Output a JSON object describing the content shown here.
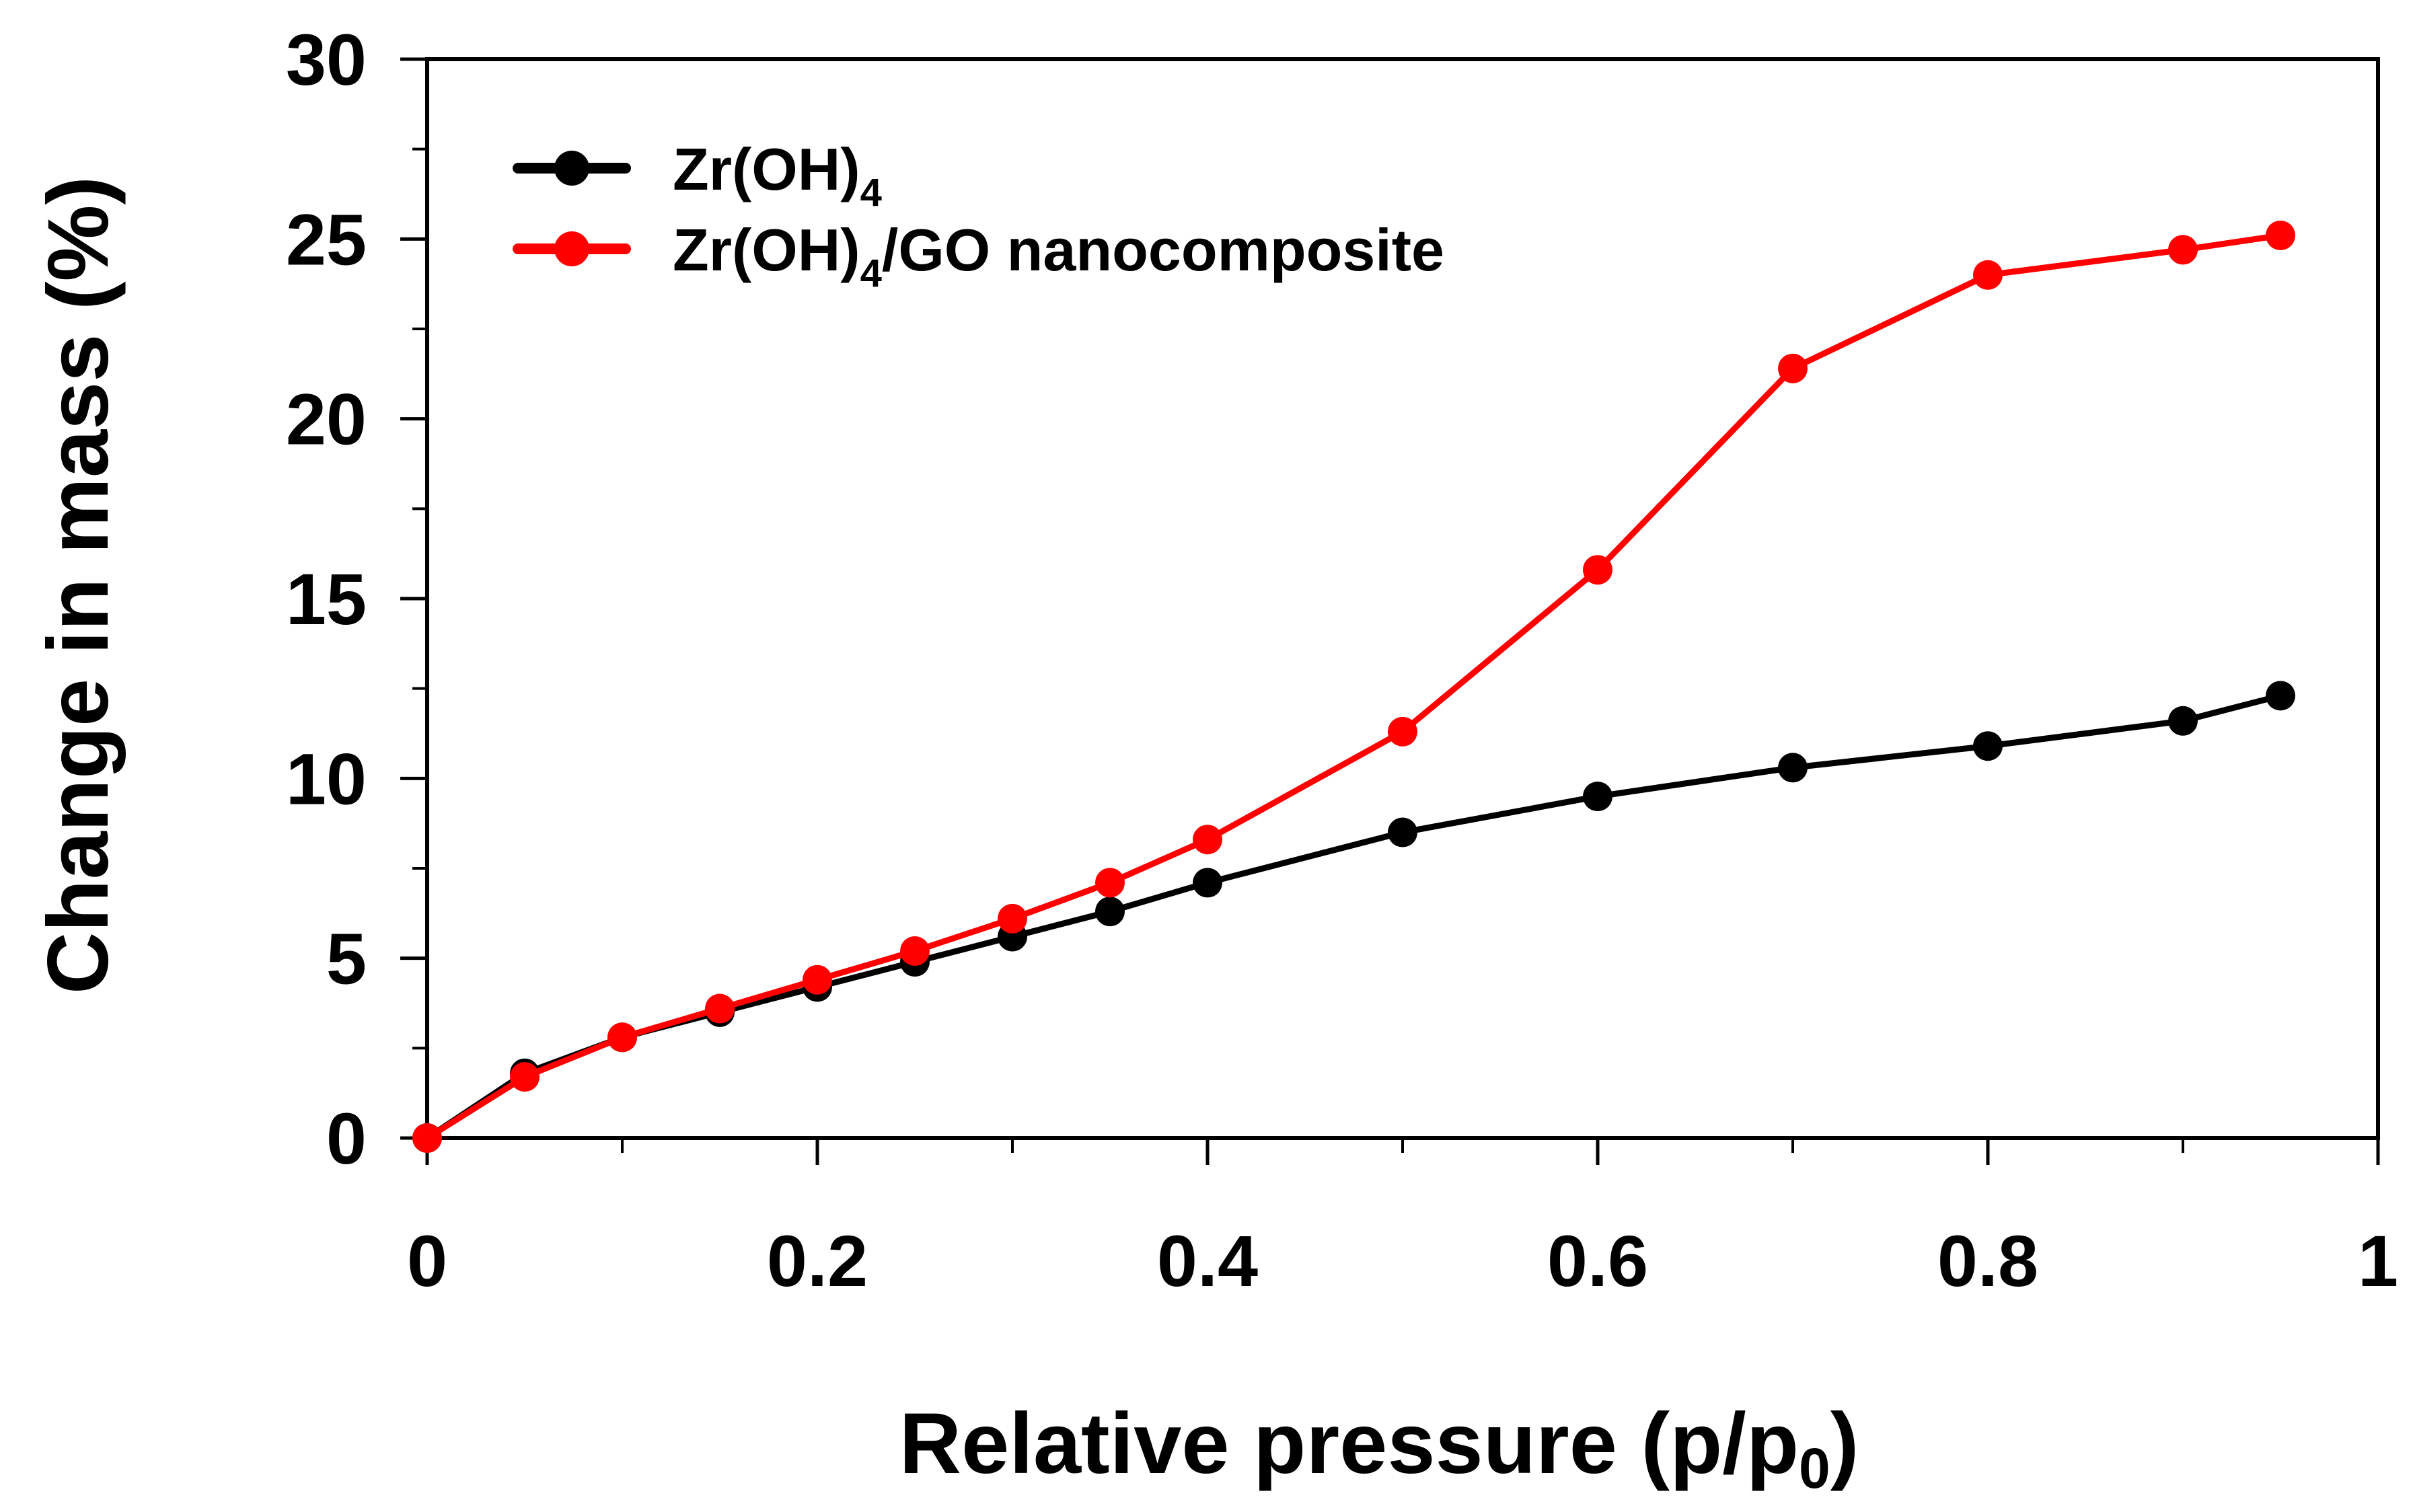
{
  "chart_data": {
    "type": "line",
    "title": "",
    "xlabel": "Relative pressure (p/p0)",
    "xlabel_parts": {
      "base": "Relative pressure (p/p",
      "subscript": "0",
      "suffix": ")"
    },
    "ylabel": "Change in mass (%)",
    "xlim": [
      0,
      1
    ],
    "ylim": [
      0,
      30
    ],
    "x_ticks": [
      0,
      0.2,
      0.4,
      0.6,
      0.8,
      1
    ],
    "x_tick_labels": [
      "0",
      "0.2",
      "0.4",
      "0.6",
      "0.8",
      "1"
    ],
    "x_minor_ticks": [
      0.1,
      0.3,
      0.5,
      0.7,
      0.9
    ],
    "y_ticks": [
      0,
      5,
      10,
      15,
      20,
      25,
      30
    ],
    "y_tick_labels": [
      "0",
      "5",
      "10",
      "15",
      "20",
      "25",
      "30"
    ],
    "y_minor_ticks": [
      2.5,
      7.5,
      12.5,
      17.5,
      22.5,
      27.5
    ],
    "grid": false,
    "legend_position": "top-left",
    "series": [
      {
        "name": "Zr(OH)4",
        "legend": {
          "base": "Zr(OH)",
          "subscript": "4",
          "suffix": ""
        },
        "color": "#000000",
        "x": [
          0,
          0.05,
          0.1,
          0.15,
          0.2,
          0.25,
          0.3,
          0.35,
          0.4,
          0.5,
          0.6,
          0.7,
          0.8,
          0.9,
          0.95
        ],
        "values": [
          0,
          1.8,
          2.8,
          3.5,
          4.2,
          4.9,
          5.6,
          6.3,
          7.1,
          8.5,
          9.5,
          10.3,
          10.9,
          11.6,
          12.3
        ]
      },
      {
        "name": "Zr(OH)4/GO nanocomposite",
        "legend": {
          "base": "Zr(OH)",
          "subscript": "4",
          "suffix": "/GO nanocomposite"
        },
        "color": "#ff0000",
        "x": [
          0,
          0.05,
          0.1,
          0.15,
          0.2,
          0.25,
          0.3,
          0.35,
          0.4,
          0.5,
          0.6,
          0.7,
          0.8,
          0.9,
          0.95
        ],
        "values": [
          0,
          1.7,
          2.8,
          3.6,
          4.4,
          5.2,
          6.1,
          7.1,
          8.3,
          11.3,
          15.8,
          21.4,
          24.0,
          24.7,
          25.1
        ]
      }
    ]
  }
}
